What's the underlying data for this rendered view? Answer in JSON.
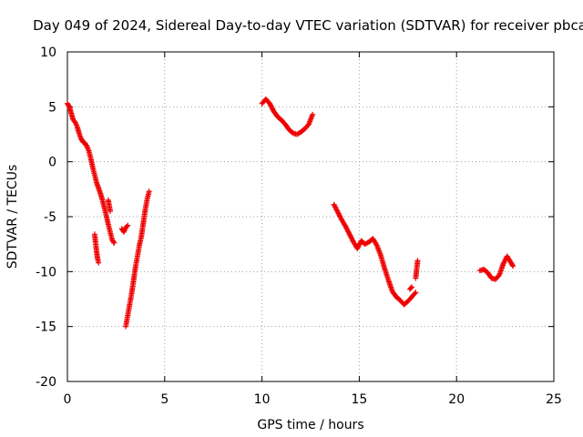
{
  "chart_data": {
    "type": "scatter",
    "title": "Day 049 of 2024, Sidereal Day-to-day VTEC variation (SDTVAR) for receiver pbca",
    "xlabel": "GPS time / hours",
    "ylabel": "SDTVAR / TECUs",
    "xlim": [
      0,
      25
    ],
    "ylim": [
      -20,
      10
    ],
    "xticks": [
      "0",
      "5",
      "10",
      "15",
      "20",
      "25"
    ],
    "yticks": [
      "10",
      "5",
      "0",
      "-5",
      "-10",
      "-15",
      "-20"
    ],
    "grid": true,
    "marker": "+",
    "colors": {
      "series": "#ee0000",
      "grid": "#a0a0a0",
      "axis": "#000000"
    },
    "series": [
      {
        "name": "SDTVAR",
        "segments": [
          [
            [
              0.0,
              5.3
            ],
            [
              0.1,
              5.0
            ],
            [
              0.2,
              4.4
            ],
            [
              0.3,
              3.8
            ],
            [
              0.4,
              3.6
            ],
            [
              0.5,
              3.2
            ],
            [
              0.6,
              2.6
            ],
            [
              0.7,
              2.1
            ],
            [
              0.8,
              1.8
            ],
            [
              0.9,
              1.7
            ],
            [
              1.0,
              1.4
            ],
            [
              1.1,
              1.0
            ],
            [
              1.2,
              0.3
            ],
            [
              1.3,
              -0.5
            ],
            [
              1.4,
              -1.2
            ],
            [
              1.5,
              -1.9
            ],
            [
              1.6,
              -2.4
            ],
            [
              1.7,
              -2.9
            ],
            [
              1.8,
              -3.5
            ],
            [
              1.9,
              -4.2
            ],
            [
              2.0,
              -4.9
            ],
            [
              2.1,
              -5.7
            ],
            [
              2.2,
              -6.4
            ],
            [
              2.3,
              -7.1
            ],
            [
              2.4,
              -7.4
            ]
          ],
          [
            [
              1.4,
              -6.6
            ],
            [
              1.45,
              -7.4
            ],
            [
              1.5,
              -8.2
            ],
            [
              1.55,
              -8.8
            ],
            [
              1.6,
              -9.2
            ]
          ],
          [
            [
              2.1,
              -3.5
            ],
            [
              2.15,
              -4.0
            ],
            [
              2.2,
              -4.5
            ]
          ],
          [
            [
              2.8,
              -6.1
            ],
            [
              2.9,
              -6.4
            ],
            [
              3.0,
              -6.0
            ],
            [
              3.1,
              -5.8
            ]
          ],
          [
            [
              3.0,
              -15.0
            ],
            [
              3.1,
              -14.0
            ],
            [
              3.2,
              -13.0
            ],
            [
              3.3,
              -12.0
            ],
            [
              3.4,
              -10.8
            ],
            [
              3.5,
              -9.6
            ],
            [
              3.6,
              -8.6
            ],
            [
              3.7,
              -7.6
            ],
            [
              3.8,
              -6.8
            ],
            [
              3.9,
              -5.6
            ],
            [
              4.0,
              -4.4
            ],
            [
              4.1,
              -3.4
            ],
            [
              4.2,
              -2.7
            ]
          ],
          [
            [
              10.0,
              5.3
            ],
            [
              10.2,
              5.7
            ],
            [
              10.4,
              5.3
            ],
            [
              10.6,
              4.6
            ],
            [
              10.8,
              4.1
            ],
            [
              11.0,
              3.8
            ],
            [
              11.2,
              3.4
            ],
            [
              11.4,
              2.9
            ],
            [
              11.6,
              2.6
            ],
            [
              11.8,
              2.5
            ],
            [
              12.0,
              2.7
            ],
            [
              12.2,
              3.0
            ],
            [
              12.4,
              3.4
            ],
            [
              12.6,
              4.3
            ]
          ],
          [
            [
              13.7,
              -3.9
            ],
            [
              13.9,
              -4.6
            ],
            [
              14.1,
              -5.3
            ],
            [
              14.3,
              -5.9
            ],
            [
              14.5,
              -6.6
            ],
            [
              14.7,
              -7.3
            ],
            [
              14.9,
              -7.9
            ],
            [
              15.1,
              -7.2
            ],
            [
              15.3,
              -7.5
            ],
            [
              15.5,
              -7.3
            ],
            [
              15.7,
              -7.0
            ],
            [
              15.9,
              -7.6
            ],
            [
              16.1,
              -8.5
            ],
            [
              16.3,
              -9.7
            ],
            [
              16.5,
              -10.8
            ],
            [
              16.7,
              -11.8
            ],
            [
              16.9,
              -12.3
            ],
            [
              17.1,
              -12.6
            ],
            [
              17.3,
              -13.0
            ],
            [
              17.5,
              -12.7
            ],
            [
              17.7,
              -12.3
            ],
            [
              17.9,
              -11.9
            ]
          ],
          [
            [
              17.6,
              -11.6
            ],
            [
              17.7,
              -11.4
            ]
          ],
          [
            [
              17.9,
              -10.6
            ],
            [
              17.95,
              -9.8
            ],
            [
              18.0,
              -9.0
            ]
          ],
          [
            [
              21.2,
              -9.9
            ],
            [
              21.4,
              -9.8
            ],
            [
              21.6,
              -10.1
            ],
            [
              21.8,
              -10.6
            ],
            [
              22.0,
              -10.7
            ],
            [
              22.2,
              -10.3
            ],
            [
              22.4,
              -9.3
            ],
            [
              22.6,
              -8.6
            ],
            [
              22.8,
              -9.2
            ],
            [
              22.9,
              -9.5
            ]
          ]
        ]
      }
    ]
  }
}
